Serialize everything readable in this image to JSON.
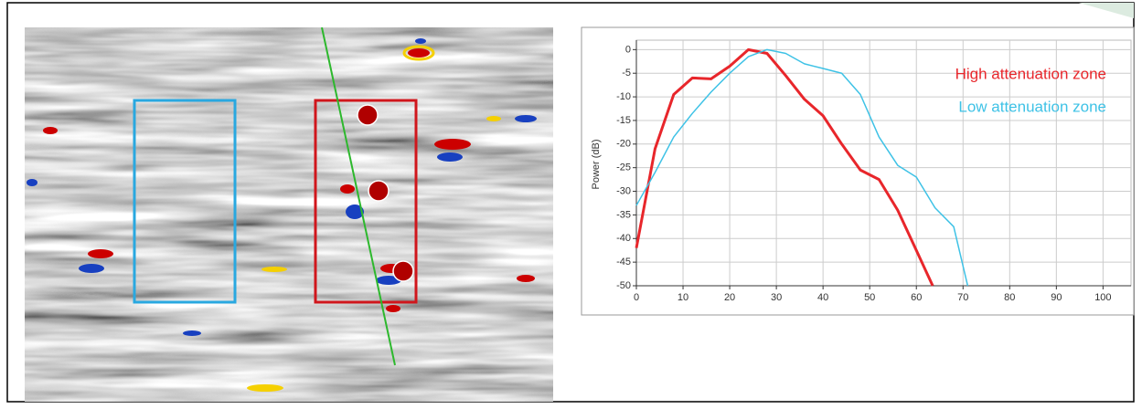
{
  "chart_data": {
    "type": "line",
    "y_label": "Power (dB)",
    "xlim": [
      0,
      106
    ],
    "ylim": [
      -50,
      2
    ],
    "xticks": [
      0,
      10,
      20,
      30,
      40,
      50,
      60,
      70,
      80,
      90,
      100
    ],
    "yticks": [
      0,
      -5,
      -10,
      -15,
      -20,
      -25,
      -30,
      -35,
      -40,
      -45,
      -50
    ],
    "grid": true,
    "legend": "upper right",
    "series": [
      {
        "name": "High attenuation zone",
        "color": "#e8262b",
        "x": [
          0,
          4,
          8,
          12,
          16,
          20,
          24,
          28,
          32,
          36,
          40,
          44,
          48,
          52,
          56,
          60,
          63.5
        ],
        "values": [
          -42,
          -21,
          -9.5,
          -6,
          -6.2,
          -3.5,
          0,
          -0.8,
          -5.5,
          -10.5,
          -14,
          -20,
          -25.5,
          -27.5,
          -34,
          -42.5,
          -50
        ]
      },
      {
        "name": "Low attenuation zone",
        "color": "#3ec2e6",
        "x": [
          0,
          4,
          8,
          12,
          16,
          20,
          24,
          28,
          32,
          36,
          40,
          44,
          48,
          52,
          56,
          60,
          64,
          68,
          71
        ],
        "values": [
          -33,
          -26,
          -18.5,
          -13.5,
          -9,
          -5,
          -1.5,
          0,
          -0.8,
          -3,
          -4,
          -5,
          -9.5,
          -18.5,
          -24.5,
          -27,
          -33.5,
          -37.5,
          -50
        ]
      }
    ]
  }
}
